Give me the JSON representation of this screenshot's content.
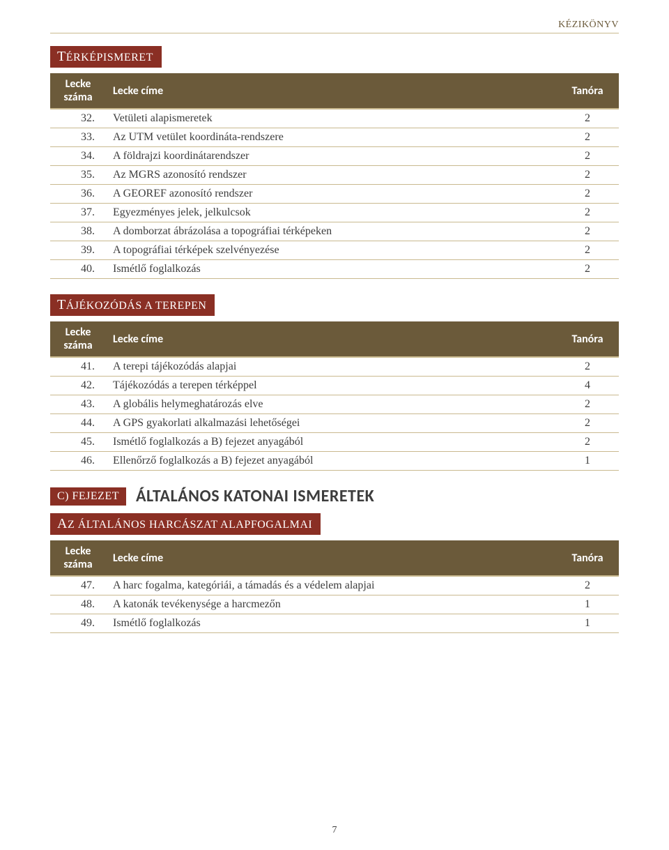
{
  "top_label": "KÉZIKÖNYV",
  "page_number": "7",
  "columns": {
    "num": "Lecke száma",
    "title": "Lecke címe",
    "hours": "Tanóra"
  },
  "sections": [
    {
      "heading_first": "T",
      "heading_rest": "ÉRKÉPISMERET",
      "rows": [
        {
          "n": "32.",
          "t": "Vetületi alapismeretek",
          "h": "2"
        },
        {
          "n": "33.",
          "t": "Az UTM vetület koordináta-rendszere",
          "h": "2"
        },
        {
          "n": "34.",
          "t": "A földrajzi koordinátarendszer",
          "h": "2"
        },
        {
          "n": "35.",
          "t": "Az MGRS azonosító rendszer",
          "h": "2"
        },
        {
          "n": "36.",
          "t": "A GEOREF azonosító rendszer",
          "h": "2"
        },
        {
          "n": "37.",
          "t": "Egyezményes jelek, jelkulcsok",
          "h": "2"
        },
        {
          "n": "38.",
          "t": "A domborzat ábrázolása a topográfiai térképeken",
          "h": "2"
        },
        {
          "n": "39.",
          "t": "A topográfiai térképek szelvényezése",
          "h": "2"
        },
        {
          "n": "40.",
          "t": "Ismétlő foglalkozás",
          "h": "2"
        }
      ]
    },
    {
      "heading_first": "T",
      "heading_rest": "ÁJÉKOZÓDÁS A TEREPEN",
      "rows": [
        {
          "n": "41.",
          "t": "A terepi tájékozódás alapjai",
          "h": "2"
        },
        {
          "n": "42.",
          "t": "Tájékozódás a terepen térképpel",
          "h": "4"
        },
        {
          "n": "43.",
          "t": "A globális helymeghatározás elve",
          "h": "2"
        },
        {
          "n": "44.",
          "t": "A GPS gyakorlati alkalmazási lehetőségei",
          "h": "2"
        },
        {
          "n": "45.",
          "t": "Ismétlő foglalkozás a B) fejezet anyagából",
          "h": "2"
        },
        {
          "n": "46.",
          "t": "Ellenőrző foglalkozás a B) fejezet anyagából",
          "h": "1"
        }
      ]
    }
  ],
  "chapter": {
    "tag": "C) FEJEZET",
    "title": "ÁLTALÁNOS KATONAI ISMERETEK"
  },
  "section3": {
    "heading_first": "A",
    "heading_rest": "Z ÁLTALÁNOS HARCÁSZAT ALAPFOGALMAI",
    "rows": [
      {
        "n": "47.",
        "t": "A harc fogalma, kategóriái, a támadás és a védelem alapjai",
        "h": "2"
      },
      {
        "n": "48.",
        "t": "A katonák tevékenysége a harcmezőn",
        "h": "1"
      },
      {
        "n": "49.",
        "t": "Ismétlő foglalkozás",
        "h": "1"
      }
    ]
  }
}
